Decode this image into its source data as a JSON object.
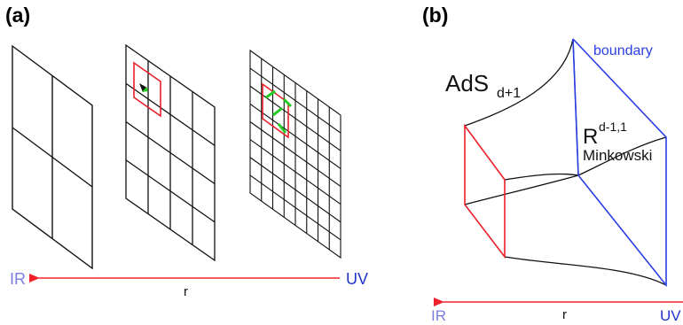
{
  "panel_a": {
    "label": "(a)",
    "axis": {
      "left_label": "IR",
      "right_label": "UV",
      "variable": "r"
    }
  },
  "panel_b": {
    "label": "(b)",
    "boundary_label": "boundary",
    "bulk": {
      "base": "AdS",
      "subscript": "d+1"
    },
    "boundary_space": {
      "base": "R",
      "superscript": "d-1,1",
      "name": "Minkowski"
    },
    "axis": {
      "left_label": "IR",
      "right_label": "UV",
      "variable": "r"
    }
  },
  "colors": {
    "grid": "#111111",
    "block": "#e8202a",
    "arrow": "#f2202a",
    "ir": "#7b7ee0",
    "uv": "#2233cc",
    "boundary": "#2a3ee6",
    "flow_green": "#22cc22"
  }
}
